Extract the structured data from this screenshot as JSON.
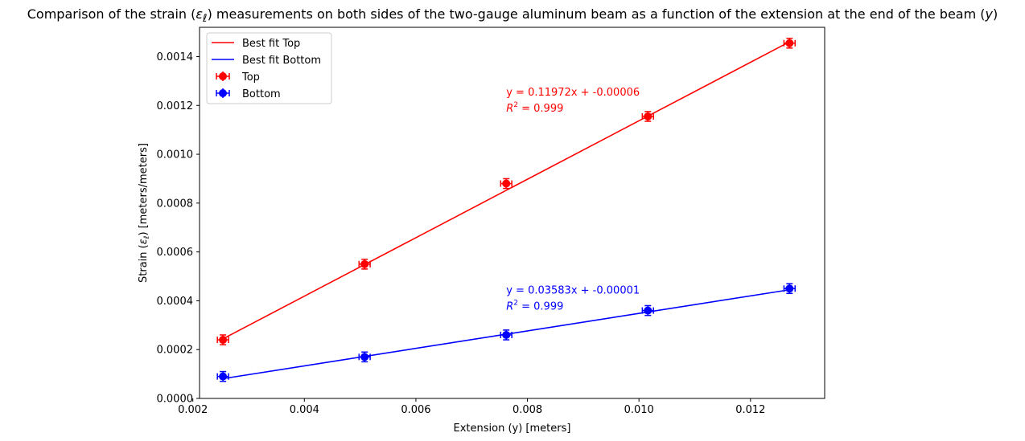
{
  "chart_data": {
    "type": "scatter",
    "title_prefix": "Comparison of the strain (",
    "title_sym": "ε",
    "title_sub": "ℓ",
    "title_mid": ") measurements on both sides of the two-gauge aluminum beam as a function of the extension at the end of the beam (",
    "title_var": "y",
    "title_suffix": ")",
    "xlabel": "Extension (y) [meters]",
    "ylabel_prefix": "Strain (",
    "ylabel_sym": "ε",
    "ylabel_sub": "ℓ",
    "ylabel_suffix": ") [meters/meters]",
    "xlim": [
      0.00212,
      0.01333
    ],
    "ylim": [
      0.0,
      0.00152
    ],
    "x_ticks": [
      0.002,
      0.004,
      0.006,
      0.008,
      0.01,
      0.012
    ],
    "x_tick_labels": [
      "0.002",
      "0.004",
      "0.006",
      "0.008",
      "0.010",
      "0.012"
    ],
    "y_ticks": [
      0.0,
      0.0002,
      0.0004,
      0.0006,
      0.0008,
      0.001,
      0.0012,
      0.0014
    ],
    "y_tick_labels": [
      "0.0000",
      "0.0002",
      "0.0004",
      "0.0006",
      "0.0008",
      "0.0010",
      "0.0012",
      "0.0014"
    ],
    "grid": false,
    "legend_position": "top-left",
    "series": [
      {
        "name": "Top",
        "color": "#ff0000",
        "x": [
          0.00254,
          0.00508,
          0.00762,
          0.01016,
          0.0127
        ],
        "y": [
          0.00024,
          0.00055,
          0.00088,
          0.001155,
          0.001455
        ],
        "x_err": 0.0001,
        "y_err": 2e-05,
        "fit_name": "Best fit Top",
        "fit": {
          "slope": 0.11972,
          "intercept": -6e-05
        },
        "equation_text": "y = 0.11972x + -0.00006",
        "r2_prefix": "R",
        "r2_sup": "2",
        "r2_value_text": " = 0.999"
      },
      {
        "name": "Bottom",
        "color": "#0000ff",
        "x": [
          0.00254,
          0.00508,
          0.00762,
          0.01016,
          0.0127
        ],
        "y": [
          9e-05,
          0.00017,
          0.00026,
          0.00036,
          0.00045
        ],
        "x_err": 0.0001,
        "y_err": 2e-05,
        "fit_name": "Best fit Bottom",
        "fit": {
          "slope": 0.03583,
          "intercept": -1e-05
        },
        "equation_text": "y = 0.03583x + -0.00001",
        "r2_prefix": "R",
        "r2_sup": "2",
        "r2_value_text": " = 0.999"
      }
    ],
    "annotations": [
      {
        "series": 0,
        "x": 0.00762,
        "y": 0.00124
      },
      {
        "series": 1,
        "x": 0.00762,
        "y": 0.00043
      }
    ]
  }
}
